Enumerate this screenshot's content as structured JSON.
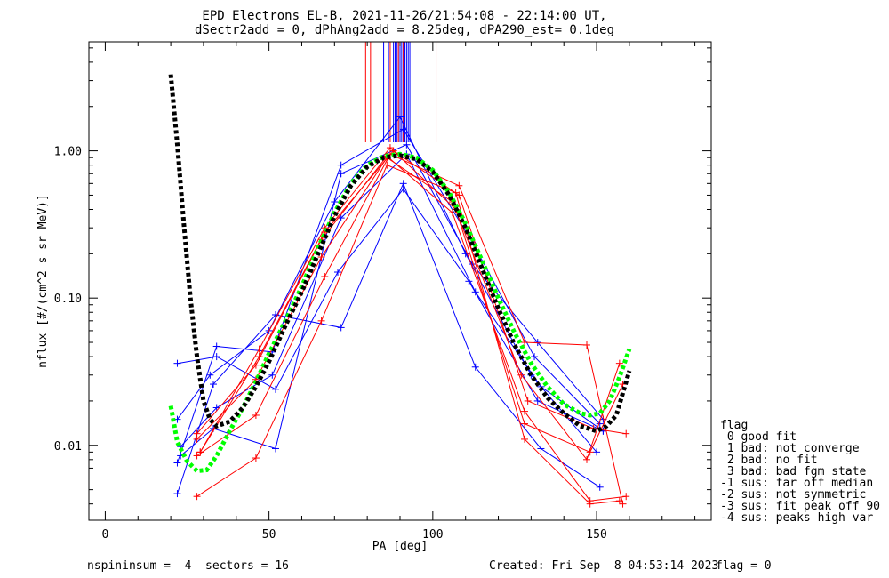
{
  "chart_data": {
    "type": "line",
    "title": "EPD Electrons EL-B, 2021-11-26/21:54:08 - 22:14:00 UT,",
    "subtitle": "dSectr2add = 0, dPhAng2add = 8.25deg, dPA290_est=   0.1deg",
    "xlabel": "PA [deg]",
    "ylabel": "nflux [#/(cm^2 s sr MeV)]",
    "xlim": [
      -5,
      185
    ],
    "ylim": [
      0.0031,
      5.5
    ],
    "yscale": "log",
    "x_ticks": [
      {
        "v": 0,
        "label": "0"
      },
      {
        "v": 50,
        "label": "50"
      },
      {
        "v": 100,
        "label": "100"
      },
      {
        "v": 150,
        "label": "150"
      }
    ],
    "y_ticks": [
      {
        "v": 0.01,
        "label": "0.01"
      },
      {
        "v": 0.1,
        "label": "0.10"
      },
      {
        "v": 1,
        "label": "1.00"
      }
    ],
    "grid": false,
    "series": [
      {
        "color": "#0000ff",
        "style": "solid",
        "x": [
          22,
          33,
          52,
          72,
          91,
          113,
          133,
          151
        ],
        "y": [
          0.0047,
          0.026,
          0.077,
          0.063,
          0.6,
          0.034,
          0.0095,
          0.0052
        ]
      },
      {
        "color": "#0000ff",
        "style": "solid",
        "x": [
          22,
          34,
          52,
          71,
          91,
          111,
          132,
          152
        ],
        "y": [
          0.036,
          0.04,
          0.024,
          0.15,
          0.55,
          0.13,
          0.02,
          0.0125
        ]
      },
      {
        "color": "#0000ff",
        "style": "solid",
        "x": [
          22,
          34,
          51,
          72,
          91,
          112,
          131,
          151
        ],
        "y": [
          0.0076,
          0.047,
          0.043,
          0.8,
          1.4,
          0.24,
          0.04,
          0.014
        ]
      },
      {
        "color": "#0000ff",
        "style": "solid",
        "x": [
          23,
          33,
          52,
          72,
          92,
          112,
          132,
          152
        ],
        "y": [
          0.0085,
          0.013,
          0.0095,
          0.7,
          1.1,
          0.17,
          0.05,
          0.015
        ]
      },
      {
        "color": "#0000ff",
        "style": "solid",
        "x": [
          22,
          32,
          50,
          70,
          90,
          110,
          130,
          150
        ],
        "y": [
          0.015,
          0.03,
          0.06,
          0.45,
          1.7,
          0.2,
          0.03,
          0.009
        ]
      },
      {
        "color": "#0000ff",
        "style": "solid",
        "x": [
          23,
          34,
          51,
          72,
          92,
          113,
          133,
          152
        ],
        "y": [
          0.0098,
          0.018,
          0.03,
          0.35,
          0.95,
          0.11,
          0.025,
          0.0125
        ]
      },
      {
        "color": "#ff0000",
        "style": "solid",
        "x": [
          28,
          46,
          66,
          86,
          107,
          128,
          148,
          157
        ],
        "y": [
          0.0045,
          0.0082,
          0.07,
          0.8,
          0.52,
          0.011,
          0.004,
          0.0042
        ]
      },
      {
        "color": "#ff0000",
        "style": "solid",
        "x": [
          28,
          46,
          67,
          87,
          108,
          128,
          147,
          158
        ],
        "y": [
          0.0085,
          0.016,
          0.14,
          0.95,
          0.58,
          0.05,
          0.048,
          0.004
        ]
      },
      {
        "color": "#ff0000",
        "style": "solid",
        "x": [
          29,
          47,
          67,
          88,
          108,
          129,
          149,
          159
        ],
        "y": [
          0.009,
          0.04,
          0.28,
          1.0,
          0.5,
          0.02,
          0.013,
          0.012
        ]
      },
      {
        "color": "#ff0000",
        "style": "solid",
        "x": [
          28,
          46,
          66,
          86,
          106,
          127,
          147,
          157
        ],
        "y": [
          0.011,
          0.028,
          0.19,
          0.9,
          0.45,
          0.03,
          0.008,
          0.036
        ]
      },
      {
        "color": "#ff0000",
        "style": "solid",
        "x": [
          29,
          47,
          67,
          87,
          107,
          128,
          148,
          158
        ],
        "y": [
          0.009,
          0.045,
          0.3,
          1.05,
          0.4,
          0.014,
          0.009,
          0.026
        ]
      },
      {
        "color": "#ff0000",
        "style": "solid",
        "x": [
          28,
          46,
          66,
          86,
          106,
          128,
          148,
          159
        ],
        "y": [
          0.012,
          0.035,
          0.25,
          0.92,
          0.38,
          0.017,
          0.0042,
          0.0045
        ]
      },
      {
        "color": "#00ff00",
        "style": "dashed-thick",
        "x": [
          20,
          22,
          25,
          28,
          31,
          34,
          38,
          42,
          46,
          50,
          55,
          60,
          65,
          70,
          75,
          80,
          85,
          90,
          95,
          100,
          105,
          110,
          115,
          120,
          125,
          130,
          135,
          140,
          145,
          148,
          151,
          154,
          157,
          160
        ],
        "y": [
          0.0185,
          0.0105,
          0.0078,
          0.0067,
          0.0068,
          0.0085,
          0.0125,
          0.018,
          0.027,
          0.042,
          0.07,
          0.12,
          0.22,
          0.38,
          0.6,
          0.8,
          0.92,
          0.95,
          0.9,
          0.74,
          0.52,
          0.32,
          0.18,
          0.1,
          0.058,
          0.036,
          0.025,
          0.019,
          0.0165,
          0.016,
          0.0165,
          0.02,
          0.029,
          0.045
        ]
      },
      {
        "color": "#000000",
        "style": "dashed-thick",
        "x": [
          20,
          22,
          24,
          26,
          28,
          30,
          32,
          34,
          38,
          42,
          46,
          50,
          55,
          60,
          65,
          70,
          75,
          80,
          85,
          90,
          95,
          100,
          105,
          110,
          115,
          120,
          125,
          130,
          135,
          140,
          145,
          150,
          153,
          156,
          160
        ],
        "y": [
          3.3,
          1.1,
          0.32,
          0.1,
          0.04,
          0.02,
          0.015,
          0.0135,
          0.0145,
          0.018,
          0.025,
          0.037,
          0.065,
          0.11,
          0.2,
          0.36,
          0.58,
          0.78,
          0.9,
          0.93,
          0.88,
          0.72,
          0.5,
          0.3,
          0.16,
          0.085,
          0.048,
          0.03,
          0.021,
          0.0165,
          0.0135,
          0.0125,
          0.0135,
          0.016,
          0.032
        ]
      }
    ],
    "vertical_marks": [
      {
        "color": "#0000ff",
        "x": [
          85,
          86.5,
          88,
          88.5,
          89,
          89.5,
          90,
          90.5,
          91,
          91.5,
          92,
          92.5,
          93
        ]
      },
      {
        "color": "#ff0000",
        "x": [
          79.5,
          81,
          87,
          89.5,
          91,
          101
        ]
      }
    ],
    "legend": {
      "placement": "right",
      "heading": "flag",
      "entries": [
        " 0 good fit",
        " 1 bad: not converge",
        " 2 bad: no fit",
        " 3 bad: bad fgm state",
        "-1 sus: far off median",
        "-2 sus: not symmetric",
        "-3 sus: fit peak off 90",
        "-4 sus: peaks high var"
      ]
    }
  },
  "footer": {
    "left": "nspininsum =  4  sectors = 16",
    "created": "Created: Fri Sep  8 04:53:14 2023",
    "flag": "flag = 0"
  }
}
